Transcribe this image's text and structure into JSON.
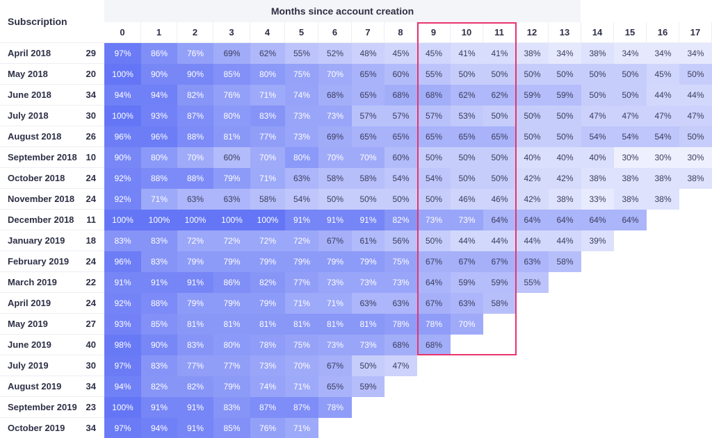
{
  "title": "Subscription",
  "header": "Months since account creation",
  "months": [
    0,
    1,
    2,
    3,
    4,
    5,
    6,
    7,
    8,
    9,
    10,
    11,
    12,
    13,
    14,
    15,
    16,
    17
  ],
  "rows": [
    {
      "label": "April 2018",
      "count": 29,
      "cells": [
        "97%",
        "86%",
        "76%",
        "69%",
        "62%",
        "55%",
        "52%",
        "48%",
        "45%",
        "45%",
        "41%",
        "41%",
        "38%",
        "34%",
        "38%",
        "34%",
        "34%",
        "34%"
      ]
    },
    {
      "label": "May 2018",
      "count": 20,
      "cells": [
        "100%",
        "90%",
        "90%",
        "85%",
        "80%",
        "75%",
        "70%",
        "65%",
        "60%",
        "55%",
        "50%",
        "50%",
        "50%",
        "50%",
        "50%",
        "50%",
        "45%",
        "50%"
      ]
    },
    {
      "label": "June 2018",
      "count": 34,
      "cells": [
        "94%",
        "94%",
        "82%",
        "76%",
        "71%",
        "74%",
        "68%",
        "65%",
        "68%",
        "68%",
        "62%",
        "62%",
        "59%",
        "59%",
        "50%",
        "50%",
        "44%",
        "44%"
      ]
    },
    {
      "label": "July 2018",
      "count": 30,
      "cells": [
        "100%",
        "93%",
        "87%",
        "80%",
        "83%",
        "73%",
        "73%",
        "57%",
        "57%",
        "57%",
        "53%",
        "50%",
        "50%",
        "50%",
        "47%",
        "47%",
        "47%",
        "47%"
      ]
    },
    {
      "label": "August 2018",
      "count": 26,
      "cells": [
        "96%",
        "96%",
        "88%",
        "81%",
        "77%",
        "73%",
        "69%",
        "65%",
        "65%",
        "65%",
        "65%",
        "65%",
        "50%",
        "50%",
        "54%",
        "54%",
        "54%",
        "50%"
      ]
    },
    {
      "label": "September 2018",
      "count": 10,
      "cells": [
        "90%",
        "80%",
        "70%",
        "60%",
        "70%",
        "80%",
        "70%",
        "70%",
        "60%",
        "50%",
        "50%",
        "50%",
        "40%",
        "40%",
        "40%",
        "30%",
        "30%",
        "30%"
      ]
    },
    {
      "label": "October 2018",
      "count": 24,
      "cells": [
        "92%",
        "88%",
        "88%",
        "79%",
        "71%",
        "63%",
        "58%",
        "58%",
        "54%",
        "54%",
        "50%",
        "50%",
        "42%",
        "42%",
        "38%",
        "38%",
        "38%",
        "38%"
      ]
    },
    {
      "label": "November 2018",
      "count": 24,
      "cells": [
        "92%",
        "71%",
        "63%",
        "63%",
        "58%",
        "54%",
        "50%",
        "50%",
        "50%",
        "50%",
        "46%",
        "46%",
        "42%",
        "38%",
        "33%",
        "38%",
        "38%"
      ]
    },
    {
      "label": "December 2018",
      "count": 11,
      "cells": [
        "100%",
        "100%",
        "100%",
        "100%",
        "100%",
        "91%",
        "91%",
        "91%",
        "82%",
        "73%",
        "73%",
        "64%",
        "64%",
        "64%",
        "64%",
        "64%"
      ]
    },
    {
      "label": "January 2019",
      "count": 18,
      "cells": [
        "83%",
        "83%",
        "72%",
        "72%",
        "72%",
        "72%",
        "67%",
        "61%",
        "56%",
        "50%",
        "44%",
        "44%",
        "44%",
        "44%",
        "39%"
      ]
    },
    {
      "label": "February 2019",
      "count": 24,
      "cells": [
        "96%",
        "83%",
        "79%",
        "79%",
        "79%",
        "79%",
        "79%",
        "79%",
        "75%",
        "67%",
        "67%",
        "67%",
        "63%",
        "58%"
      ]
    },
    {
      "label": "March 2019",
      "count": 22,
      "cells": [
        "91%",
        "91%",
        "91%",
        "86%",
        "82%",
        "77%",
        "73%",
        "73%",
        "73%",
        "64%",
        "59%",
        "59%",
        "55%"
      ]
    },
    {
      "label": "April 2019",
      "count": 24,
      "cells": [
        "92%",
        "88%",
        "79%",
        "79%",
        "79%",
        "71%",
        "71%",
        "63%",
        "63%",
        "67%",
        "63%",
        "58%"
      ]
    },
    {
      "label": "May 2019",
      "count": 27,
      "cells": [
        "93%",
        "85%",
        "81%",
        "81%",
        "81%",
        "81%",
        "81%",
        "81%",
        "78%",
        "78%",
        "70%"
      ]
    },
    {
      "label": "June 2019",
      "count": 40,
      "cells": [
        "98%",
        "90%",
        "83%",
        "80%",
        "78%",
        "75%",
        "73%",
        "73%",
        "68%",
        "68%"
      ]
    },
    {
      "label": "July 2019",
      "count": 30,
      "cells": [
        "97%",
        "83%",
        "77%",
        "77%",
        "73%",
        "70%",
        "67%",
        "50%",
        "47%"
      ]
    },
    {
      "label": "August 2019",
      "count": 34,
      "cells": [
        "94%",
        "82%",
        "82%",
        "79%",
        "74%",
        "71%",
        "65%",
        "59%"
      ]
    },
    {
      "label": "September 2019",
      "count": 23,
      "cells": [
        "100%",
        "91%",
        "91%",
        "83%",
        "87%",
        "87%",
        "78%"
      ]
    },
    {
      "label": "October 2019",
      "count": 34,
      "cells": [
        "97%",
        "94%",
        "91%",
        "85%",
        "76%",
        "71%"
      ]
    }
  ]
}
